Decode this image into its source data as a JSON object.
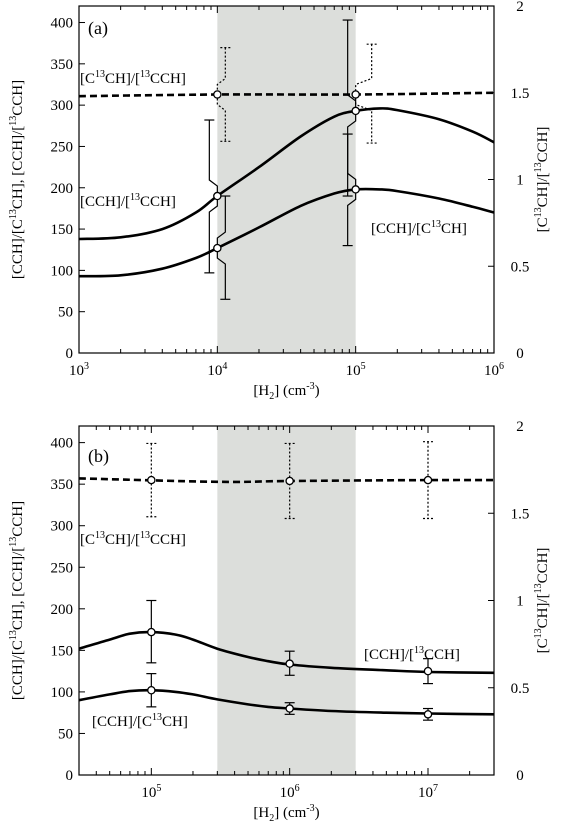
{
  "chart_data": [
    {
      "type": "line",
      "panel_label": "(a)",
      "xscale": "log",
      "xlim": [
        1000,
        1000000
      ],
      "ylim": [
        0,
        420
      ],
      "y2lim": [
        0,
        2
      ],
      "xticks": [
        {
          "value": 1000,
          "base": "10",
          "exp": "3"
        },
        {
          "value": 10000,
          "base": "10",
          "exp": "4"
        },
        {
          "value": 100000,
          "base": "10",
          "exp": "5"
        },
        {
          "value": 1000000,
          "base": "10",
          "exp": "6"
        }
      ],
      "yticks": [
        "0",
        "50",
        "100",
        "150",
        "200",
        "250",
        "300",
        "350",
        "400"
      ],
      "y2ticks": [
        "0",
        "0.5",
        "1",
        "1.5",
        "2"
      ],
      "xlabel": {
        "a": "[H",
        "b": "2",
        "c": "] (cm",
        "d": "-3",
        "e": ")"
      },
      "ylabel": {
        "a": "[CCH]/[C",
        "b": "13",
        "c": "CH], [CCH]/[",
        "d": "13",
        "e": "CCH]"
      },
      "y2label": {
        "a": "[C",
        "b": "13",
        "c": "CH]/[",
        "d": "13",
        "e": "CCH]"
      },
      "shaded_region": [
        10000,
        100000
      ],
      "series": [
        {
          "label": {
            "a": "[CCH]/[",
            "b": "13",
            "c": "CCH]"
          },
          "axis": "left",
          "style": "solid",
          "x": [
            1000,
            2000,
            4000,
            7000,
            10000,
            20000,
            40000,
            70000,
            100000,
            150000,
            200000,
            400000,
            700000,
            1000000
          ],
          "y": [
            138,
            140,
            150,
            170,
            190,
            225,
            262,
            286,
            293,
            296,
            294,
            283,
            268,
            255
          ]
        },
        {
          "label": {
            "a": "[CCH]/[C",
            "b": "13",
            "c": "CH]"
          },
          "axis": "left",
          "style": "solid",
          "x": [
            1000,
            2000,
            4000,
            7000,
            10000,
            20000,
            40000,
            70000,
            100000,
            150000,
            200000,
            400000,
            700000,
            1000000
          ],
          "y": [
            93,
            94,
            102,
            115,
            127,
            152,
            178,
            193,
            198,
            198,
            196,
            187,
            177,
            170
          ]
        },
        {
          "label": {
            "a": "[C",
            "b": "13",
            "c": "CH]/[",
            "d": "13",
            "e": "CCH]"
          },
          "axis": "right",
          "style": "dashed",
          "x": [
            1000,
            10000,
            100000,
            1000000
          ],
          "y": [
            1.48,
            1.49,
            1.49,
            1.5
          ]
        }
      ],
      "error_bars": [
        {
          "x": 10000,
          "y": 190,
          "low": 97,
          "high": 282,
          "axis": "left",
          "style": "solid",
          "xoff_bar": -8
        },
        {
          "x": 10000,
          "y": 127,
          "low": 65,
          "high": 190,
          "axis": "left",
          "style": "solid",
          "xoff_bar": 8
        },
        {
          "x": 100000,
          "y": 293,
          "low": 190,
          "high": 403,
          "axis": "left",
          "style": "solid",
          "xoff_bar": -8
        },
        {
          "x": 100000,
          "y": 198,
          "low": 130,
          "high": 265,
          "axis": "left",
          "style": "solid",
          "xoff_bar": -8
        },
        {
          "x": 10000,
          "y": 1.49,
          "low": 1.22,
          "high": 1.76,
          "axis": "right",
          "style": "dotted",
          "xoff_bar": 8
        },
        {
          "x": 100000,
          "y": 1.49,
          "low": 1.21,
          "high": 1.78,
          "axis": "right",
          "style": "dotted",
          "xoff_bar": 16
        }
      ]
    },
    {
      "type": "line",
      "panel_label": "(b)",
      "xscale": "log",
      "xlim": [
        30000,
        30000000
      ],
      "ylim": [
        0,
        420
      ],
      "y2lim": [
        0,
        2
      ],
      "xticks": [
        {
          "value": 100000,
          "base": "10",
          "exp": "5"
        },
        {
          "value": 1000000,
          "base": "10",
          "exp": "6"
        },
        {
          "value": 10000000,
          "base": "10",
          "exp": "7"
        }
      ],
      "yticks": [
        "0",
        "50",
        "100",
        "150",
        "200",
        "250",
        "300",
        "350",
        "400"
      ],
      "y2ticks": [
        "0",
        "0.5",
        "1",
        "1.5",
        "2"
      ],
      "xlabel": {
        "a": "[H",
        "b": "2",
        "c": "] (cm",
        "d": "-3",
        "e": ")"
      },
      "ylabel": {
        "a": "[CCH]/[C",
        "b": "13",
        "c": "CH], [CCH]/[",
        "d": "13",
        "e": "CCH]"
      },
      "y2label": {
        "a": "[C",
        "b": "13",
        "c": "CH]/[",
        "d": "13",
        "e": "CCH]"
      },
      "shaded_region": [
        300000,
        3000000
      ],
      "series": [
        {
          "label": {
            "a": "[CCH]/[",
            "b": "13",
            "c": "CCH]"
          },
          "axis": "left",
          "style": "solid",
          "x": [
            30000,
            50000,
            70000,
            100000,
            150000,
            200000,
            300000,
            500000,
            700000,
            1000000,
            2000000,
            5000000,
            10000000,
            30000000
          ],
          "y": [
            152,
            163,
            170,
            172,
            169,
            163,
            152,
            142,
            137,
            133,
            129,
            126,
            124,
            123
          ]
        },
        {
          "label": {
            "a": "[CCH]/[C",
            "b": "13",
            "c": "CH]"
          },
          "axis": "left",
          "style": "solid",
          "x": [
            30000,
            50000,
            70000,
            100000,
            150000,
            200000,
            300000,
            500000,
            700000,
            1000000,
            2000000,
            5000000,
            10000000,
            30000000
          ],
          "y": [
            90,
            97,
            101,
            102,
            100,
            97,
            91,
            85,
            82,
            80,
            77,
            75,
            74,
            73
          ]
        },
        {
          "label": {
            "a": "[C",
            "b": "13",
            "c": "CH]/[",
            "d": "13",
            "e": "CCH]"
          },
          "axis": "right",
          "style": "dashed",
          "x": [
            30000,
            300000,
            1000000,
            10000000,
            30000000
          ],
          "y": [
            1.7,
            1.68,
            1.685,
            1.69,
            1.69
          ]
        }
      ],
      "error_bars": [
        {
          "x": 100000,
          "y": 172,
          "low": 135,
          "high": 210,
          "axis": "left",
          "style": "solid",
          "xoff_bar": 0
        },
        {
          "x": 1000000,
          "y": 134,
          "low": 120,
          "high": 149,
          "axis": "left",
          "style": "solid",
          "xoff_bar": 0
        },
        {
          "x": 10000000,
          "y": 125,
          "low": 110,
          "high": 140,
          "axis": "left",
          "style": "solid",
          "xoff_bar": 0
        },
        {
          "x": 100000,
          "y": 102,
          "low": 82,
          "high": 122,
          "axis": "left",
          "style": "solid",
          "xoff_bar": 0
        },
        {
          "x": 1000000,
          "y": 80,
          "low": 73,
          "high": 87,
          "axis": "left",
          "style": "solid",
          "xoff_bar": 0
        },
        {
          "x": 10000000,
          "y": 73,
          "low": 66,
          "high": 80,
          "axis": "left",
          "style": "solid",
          "xoff_bar": 0
        },
        {
          "x": 100000,
          "y": 1.69,
          "low": 1.48,
          "high": 1.9,
          "axis": "right",
          "style": "dotted",
          "xoff_bar": 0
        },
        {
          "x": 1000000,
          "y": 1.685,
          "low": 1.47,
          "high": 1.9,
          "axis": "right",
          "style": "dotted",
          "xoff_bar": 0
        },
        {
          "x": 10000000,
          "y": 1.69,
          "low": 1.47,
          "high": 1.91,
          "axis": "right",
          "style": "dotted",
          "xoff_bar": 0
        }
      ]
    }
  ]
}
